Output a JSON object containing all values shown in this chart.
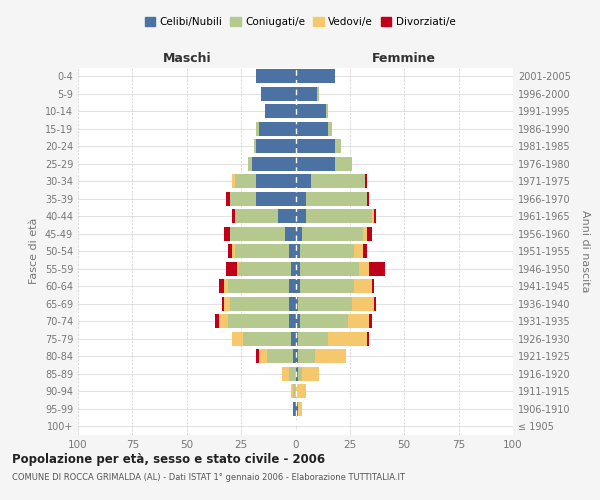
{
  "age_groups": [
    "100+",
    "95-99",
    "90-94",
    "85-89",
    "80-84",
    "75-79",
    "70-74",
    "65-69",
    "60-64",
    "55-59",
    "50-54",
    "45-49",
    "40-44",
    "35-39",
    "30-34",
    "25-29",
    "20-24",
    "15-19",
    "10-14",
    "5-9",
    "0-4"
  ],
  "birth_years": [
    "≤ 1905",
    "1906-1910",
    "1911-1915",
    "1916-1920",
    "1921-1925",
    "1926-1930",
    "1931-1935",
    "1936-1940",
    "1941-1945",
    "1946-1950",
    "1951-1955",
    "1956-1960",
    "1961-1965",
    "1966-1970",
    "1971-1975",
    "1976-1980",
    "1981-1985",
    "1986-1990",
    "1991-1995",
    "1996-2000",
    "2001-2005"
  ],
  "male": {
    "celibi": [
      0,
      1,
      0,
      0,
      1,
      2,
      3,
      3,
      3,
      2,
      3,
      5,
      8,
      18,
      18,
      20,
      18,
      17,
      14,
      16,
      18
    ],
    "coniugati": [
      0,
      0,
      1,
      3,
      12,
      22,
      28,
      27,
      28,
      24,
      25,
      25,
      20,
      12,
      10,
      2,
      1,
      1,
      0,
      0,
      0
    ],
    "vedovi": [
      0,
      0,
      1,
      3,
      4,
      5,
      4,
      3,
      2,
      1,
      1,
      0,
      0,
      0,
      1,
      0,
      0,
      0,
      0,
      0,
      0
    ],
    "divorziati": [
      0,
      0,
      0,
      0,
      1,
      0,
      2,
      1,
      2,
      5,
      2,
      3,
      1,
      2,
      0,
      0,
      0,
      0,
      0,
      0,
      0
    ]
  },
  "female": {
    "nubili": [
      0,
      1,
      0,
      1,
      1,
      1,
      2,
      1,
      2,
      2,
      2,
      3,
      5,
      5,
      7,
      18,
      18,
      15,
      14,
      10,
      18
    ],
    "coniugate": [
      0,
      0,
      0,
      2,
      8,
      14,
      22,
      25,
      25,
      27,
      25,
      28,
      30,
      28,
      25,
      8,
      3,
      2,
      1,
      1,
      0
    ],
    "vedove": [
      0,
      2,
      5,
      8,
      14,
      18,
      10,
      10,
      8,
      5,
      4,
      2,
      1,
      0,
      0,
      0,
      0,
      0,
      0,
      0,
      0
    ],
    "divorziate": [
      0,
      0,
      0,
      0,
      0,
      1,
      1,
      1,
      1,
      7,
      2,
      2,
      1,
      1,
      1,
      0,
      0,
      0,
      0,
      0,
      0
    ]
  },
  "colors": {
    "celibi": "#4c72a4",
    "coniugati": "#b5c98e",
    "vedovi": "#f5c86e",
    "divorziati": "#c0001a"
  },
  "title": "Popolazione per età, sesso e stato civile - 2006",
  "subtitle": "COMUNE DI ROCCA GRIMALDA (AL) - Dati ISTAT 1° gennaio 2006 - Elaborazione TUTTITALIA.IT",
  "xlabel_left": "Maschi",
  "xlabel_right": "Femmine",
  "ylabel_left": "Fasce di età",
  "ylabel_right": "Anni di nascita",
  "xlim": 100,
  "legend_labels": [
    "Celibi/Nubili",
    "Coniugati/e",
    "Vedovi/e",
    "Divorziati/e"
  ],
  "bg_color": "#f5f5f5",
  "plot_bg": "#ffffff",
  "grid_color": "#cccccc",
  "tick_color": "#777777"
}
